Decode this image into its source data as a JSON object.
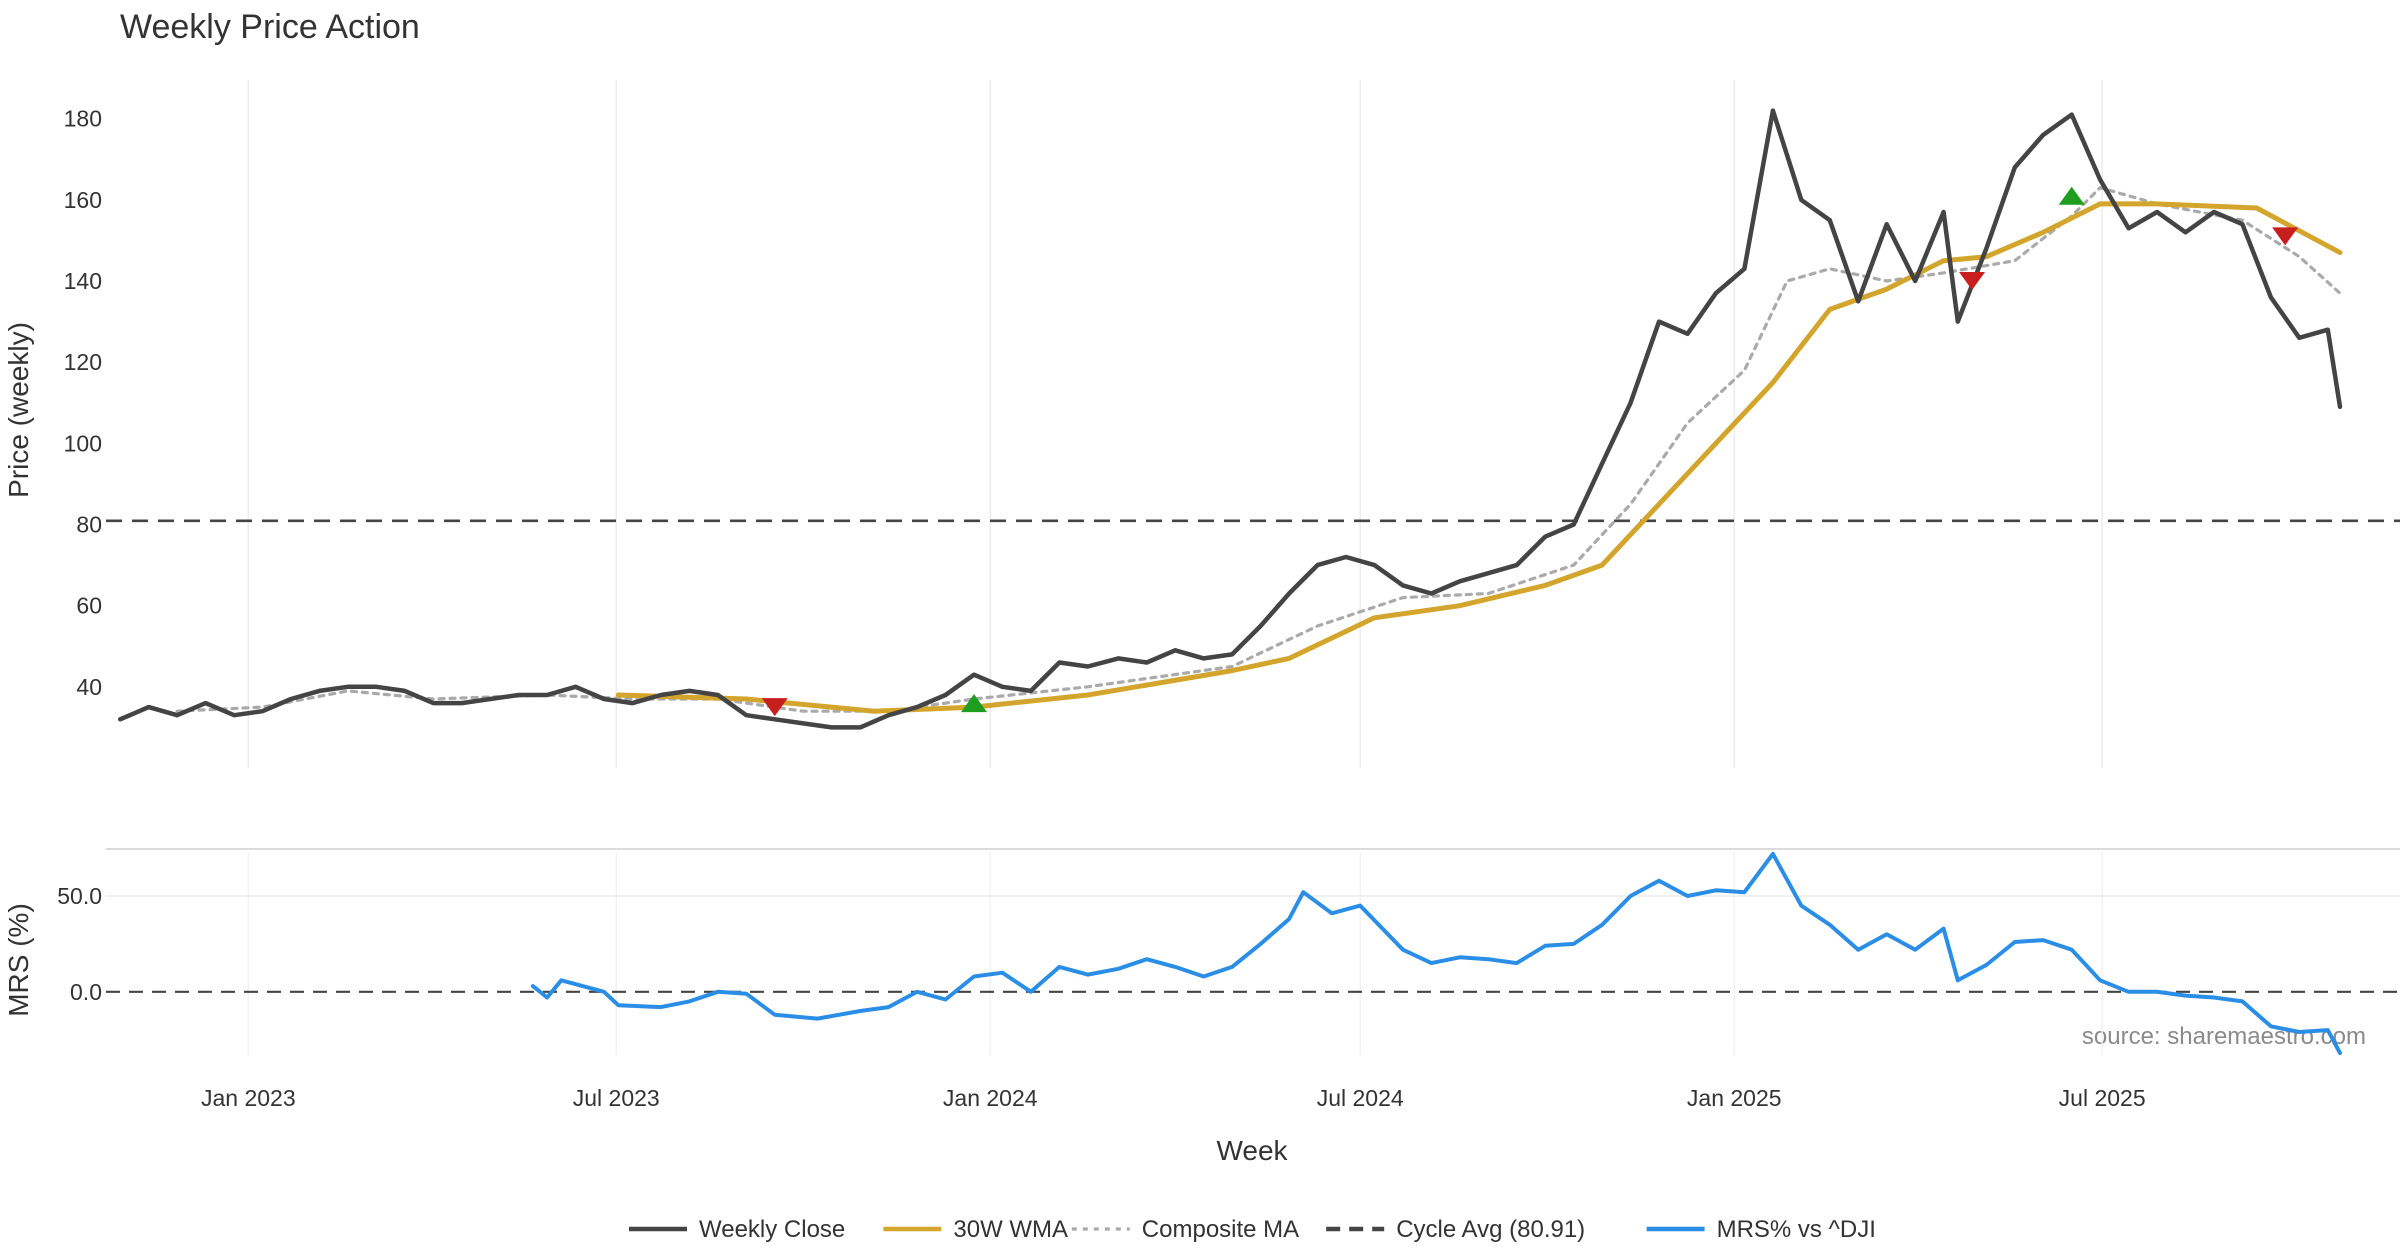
{
  "chart_data": {
    "type": "line",
    "title": "Weekly Price Action",
    "xlabel": "Week",
    "source": "source: sharemaestro.com",
    "x_ticks": [
      "Jan 2023",
      "Jul 2023",
      "Jan 2024",
      "Jul 2024",
      "Jan 2025",
      "Jul 2025"
    ],
    "x_tick_dates": [
      "2023-01-01",
      "2023-07-01",
      "2024-01-01",
      "2024-07-01",
      "2025-01-01",
      "2025-07-01"
    ],
    "x_range": [
      "2022-10-23",
      "2025-10-26"
    ],
    "grid": true,
    "legend_position": "bottom-center",
    "panels": {
      "price": {
        "ylabel": "Price (weekly)",
        "ylim": [
          20,
          192
        ],
        "yticks": [
          40,
          60,
          80,
          100,
          120,
          140,
          160,
          180
        ]
      },
      "mrs": {
        "ylabel": "MRS (%)",
        "ylim": [
          -33,
          73
        ],
        "yticks": [
          0.0,
          50.0
        ],
        "ytick_labels": [
          "0.0",
          "50.0"
        ]
      }
    },
    "legend": [
      {
        "label": "Weekly Close",
        "style": "solid",
        "color": "#444444"
      },
      {
        "label": "30W WMA",
        "style": "solid",
        "color": "#d4a52c"
      },
      {
        "label": "Composite MA",
        "style": "dotted",
        "color": "#aaaaaa"
      },
      {
        "label": "Cycle Avg (80.91)",
        "style": "dashed",
        "color": "#444444"
      },
      {
        "label": "MRS% vs ^DJI",
        "style": "solid",
        "color": "#2b8ee6"
      }
    ],
    "cycle_avg": 80.91,
    "series": [
      {
        "name": "Weekly Close",
        "panel": "price",
        "color": "#444444",
        "points": [
          [
            "2022-10-30",
            32
          ],
          [
            "2022-11-13",
            35
          ],
          [
            "2022-11-27",
            33
          ],
          [
            "2022-12-11",
            36
          ],
          [
            "2022-12-25",
            33
          ],
          [
            "2023-01-08",
            34
          ],
          [
            "2023-01-22",
            37
          ],
          [
            "2023-02-05",
            39
          ],
          [
            "2023-02-19",
            40
          ],
          [
            "2023-03-05",
            40
          ],
          [
            "2023-03-19",
            39
          ],
          [
            "2023-04-02",
            36
          ],
          [
            "2023-04-16",
            36
          ],
          [
            "2023-04-30",
            37
          ],
          [
            "2023-05-14",
            38
          ],
          [
            "2023-05-28",
            38
          ],
          [
            "2023-06-11",
            40
          ],
          [
            "2023-06-25",
            37
          ],
          [
            "2023-07-09",
            36
          ],
          [
            "2023-07-23",
            38
          ],
          [
            "2023-08-06",
            39
          ],
          [
            "2023-08-20",
            38
          ],
          [
            "2023-09-03",
            33
          ],
          [
            "2023-09-17",
            32
          ],
          [
            "2023-10-01",
            31
          ],
          [
            "2023-10-15",
            30
          ],
          [
            "2023-10-29",
            30
          ],
          [
            "2023-11-12",
            33
          ],
          [
            "2023-11-26",
            35
          ],
          [
            "2023-12-10",
            38
          ],
          [
            "2023-12-24",
            43
          ],
          [
            "2024-01-07",
            40
          ],
          [
            "2024-01-21",
            39
          ],
          [
            "2024-02-04",
            46
          ],
          [
            "2024-02-18",
            45
          ],
          [
            "2024-03-04",
            47
          ],
          [
            "2024-03-18",
            46
          ],
          [
            "2024-04-01",
            49
          ],
          [
            "2024-04-15",
            47
          ],
          [
            "2024-04-29",
            48
          ],
          [
            "2024-05-13",
            55
          ],
          [
            "2024-05-27",
            63
          ],
          [
            "2024-06-10",
            70
          ],
          [
            "2024-06-24",
            72
          ],
          [
            "2024-07-08",
            70
          ],
          [
            "2024-07-22",
            65
          ],
          [
            "2024-08-05",
            63
          ],
          [
            "2024-08-19",
            66
          ],
          [
            "2024-09-02",
            68
          ],
          [
            "2024-09-16",
            70
          ],
          [
            "2024-09-30",
            77
          ],
          [
            "2024-10-14",
            80
          ],
          [
            "2024-10-28",
            95
          ],
          [
            "2024-11-11",
            110
          ],
          [
            "2024-11-25",
            130
          ],
          [
            "2024-12-09",
            127
          ],
          [
            "2024-12-23",
            137
          ],
          [
            "2025-01-06",
            143
          ],
          [
            "2025-01-20",
            182
          ],
          [
            "2025-02-03",
            160
          ],
          [
            "2025-02-17",
            155
          ],
          [
            "2025-03-03",
            135
          ],
          [
            "2025-03-17",
            154
          ],
          [
            "2025-03-31",
            140
          ],
          [
            "2025-04-14",
            157
          ],
          [
            "2025-04-21",
            130
          ],
          [
            "2025-05-05",
            148
          ],
          [
            "2025-05-19",
            168
          ],
          [
            "2025-06-02",
            176
          ],
          [
            "2025-06-16",
            181
          ],
          [
            "2025-06-30",
            165
          ],
          [
            "2025-07-14",
            153
          ],
          [
            "2025-07-28",
            157
          ],
          [
            "2025-08-11",
            152
          ],
          [
            "2025-08-25",
            157
          ],
          [
            "2025-09-08",
            154
          ],
          [
            "2025-09-22",
            136
          ],
          [
            "2025-10-06",
            126
          ],
          [
            "2025-10-20",
            128
          ],
          [
            "2025-10-26",
            109
          ]
        ]
      },
      {
        "name": "30W WMA",
        "panel": "price",
        "color": "#d4a52c",
        "points": [
          [
            "2023-07-02",
            38
          ],
          [
            "2023-09-03",
            37
          ],
          [
            "2023-11-05",
            34
          ],
          [
            "2023-12-24",
            35
          ],
          [
            "2024-02-18",
            38
          ],
          [
            "2024-04-29",
            44
          ],
          [
            "2024-05-27",
            47
          ],
          [
            "2024-07-08",
            57
          ],
          [
            "2024-08-19",
            60
          ],
          [
            "2024-09-30",
            65
          ],
          [
            "2024-10-28",
            70
          ],
          [
            "2024-11-25",
            85
          ],
          [
            "2024-12-23",
            100
          ],
          [
            "2025-01-20",
            115
          ],
          [
            "2025-02-03",
            124
          ],
          [
            "2025-02-17",
            133
          ],
          [
            "2025-03-17",
            138
          ],
          [
            "2025-04-14",
            145
          ],
          [
            "2025-05-05",
            146
          ],
          [
            "2025-06-02",
            152
          ],
          [
            "2025-06-30",
            159
          ],
          [
            "2025-07-28",
            159
          ],
          [
            "2025-09-15",
            158
          ],
          [
            "2025-10-26",
            147
          ]
        ]
      },
      {
        "name": "Composite MA",
        "panel": "price",
        "color": "#aaaaaa",
        "points": [
          [
            "2022-11-27",
            34
          ],
          [
            "2023-01-08",
            35
          ],
          [
            "2023-02-19",
            39
          ],
          [
            "2023-04-02",
            37
          ],
          [
            "2023-05-28",
            38
          ],
          [
            "2023-07-09",
            37
          ],
          [
            "2023-08-20",
            37
          ],
          [
            "2023-10-01",
            34
          ],
          [
            "2023-11-12",
            34
          ],
          [
            "2023-12-24",
            37
          ],
          [
            "2024-02-18",
            40
          ],
          [
            "2024-04-29",
            45
          ],
          [
            "2024-06-10",
            55
          ],
          [
            "2024-07-22",
            62
          ],
          [
            "2024-09-02",
            63
          ],
          [
            "2024-10-14",
            70
          ],
          [
            "2024-11-11",
            85
          ],
          [
            "2024-12-09",
            105
          ],
          [
            "2025-01-06",
            118
          ],
          [
            "2025-01-27",
            140
          ],
          [
            "2025-02-17",
            143
          ],
          [
            "2025-03-17",
            140
          ],
          [
            "2025-04-14",
            142
          ],
          [
            "2025-05-19",
            145
          ],
          [
            "2025-06-16",
            156
          ],
          [
            "2025-06-30",
            163
          ],
          [
            "2025-07-28",
            159
          ],
          [
            "2025-09-08",
            155
          ],
          [
            "2025-10-06",
            146
          ],
          [
            "2025-10-26",
            137
          ]
        ]
      },
      {
        "name": "MRS% vs ^DJI",
        "panel": "mrs",
        "color": "#2b8ee6",
        "points": [
          [
            "2023-05-21",
            3
          ],
          [
            "2023-05-28",
            -3
          ],
          [
            "2023-06-04",
            6
          ],
          [
            "2023-06-25",
            0
          ],
          [
            "2023-07-02",
            -7
          ],
          [
            "2023-07-23",
            -8
          ],
          [
            "2023-08-06",
            -5
          ],
          [
            "2023-08-20",
            0
          ],
          [
            "2023-09-03",
            -1
          ],
          [
            "2023-09-17",
            -12
          ],
          [
            "2023-10-08",
            -14
          ],
          [
            "2023-10-29",
            -10
          ],
          [
            "2023-11-12",
            -8
          ],
          [
            "2023-11-26",
            0
          ],
          [
            "2023-12-10",
            -4
          ],
          [
            "2023-12-24",
            8
          ],
          [
            "2024-01-07",
            10
          ],
          [
            "2024-01-21",
            0
          ],
          [
            "2024-02-04",
            13
          ],
          [
            "2024-02-18",
            9
          ],
          [
            "2024-03-04",
            12
          ],
          [
            "2024-03-18",
            17
          ],
          [
            "2024-04-01",
            13
          ],
          [
            "2024-04-15",
            8
          ],
          [
            "2024-04-29",
            13
          ],
          [
            "2024-05-13",
            25
          ],
          [
            "2024-05-27",
            38
          ],
          [
            "2024-06-03",
            52
          ],
          [
            "2024-06-17",
            41
          ],
          [
            "2024-07-01",
            45
          ],
          [
            "2024-07-22",
            22
          ],
          [
            "2024-08-05",
            15
          ],
          [
            "2024-08-19",
            18
          ],
          [
            "2024-09-02",
            17
          ],
          [
            "2024-09-16",
            15
          ],
          [
            "2024-09-30",
            24
          ],
          [
            "2024-10-14",
            25
          ],
          [
            "2024-10-28",
            35
          ],
          [
            "2024-11-11",
            50
          ],
          [
            "2024-11-25",
            58
          ],
          [
            "2024-12-09",
            50
          ],
          [
            "2024-12-23",
            53
          ],
          [
            "2025-01-06",
            52
          ],
          [
            "2025-01-20",
            72
          ],
          [
            "2025-02-03",
            45
          ],
          [
            "2025-02-17",
            35
          ],
          [
            "2025-03-03",
            22
          ],
          [
            "2025-03-17",
            30
          ],
          [
            "2025-03-31",
            22
          ],
          [
            "2025-04-14",
            33
          ],
          [
            "2025-04-21",
            6
          ],
          [
            "2025-05-05",
            14
          ],
          [
            "2025-05-19",
            26
          ],
          [
            "2025-06-02",
            27
          ],
          [
            "2025-06-16",
            22
          ],
          [
            "2025-06-30",
            6
          ],
          [
            "2025-07-14",
            0
          ],
          [
            "2025-07-28",
            0
          ],
          [
            "2025-08-11",
            -2
          ],
          [
            "2025-08-25",
            -3
          ],
          [
            "2025-09-08",
            -5
          ],
          [
            "2025-09-22",
            -18
          ],
          [
            "2025-10-06",
            -21
          ],
          [
            "2025-10-20",
            -20
          ],
          [
            "2025-10-26",
            -32
          ]
        ]
      }
    ],
    "markers": [
      {
        "date": "2023-09-17",
        "value": 35,
        "type": "sell",
        "color": "#c81e1e"
      },
      {
        "date": "2023-12-24",
        "value": 36,
        "type": "buy",
        "color": "#1e9e1e"
      },
      {
        "date": "2025-04-28",
        "value": 140,
        "type": "sell",
        "color": "#c81e1e"
      },
      {
        "date": "2025-06-16",
        "value": 161,
        "type": "buy",
        "color": "#1e9e1e"
      },
      {
        "date": "2025-09-29",
        "value": 151,
        "type": "sell",
        "color": "#c81e1e"
      }
    ]
  }
}
